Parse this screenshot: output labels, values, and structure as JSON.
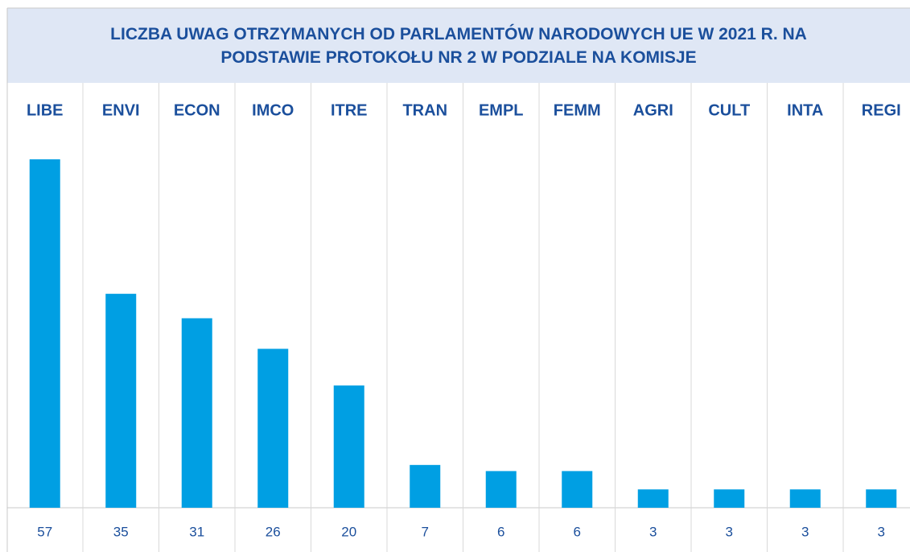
{
  "chart_data": {
    "type": "bar",
    "title": "LICZBA UWAG OTRZYMANYCH OD PARLAMENTÓW NARODOWYCH UE W 2021 R. NA PODSTAWIE PROTOKOŁU NR 2 W PODZIALE NA KOMISJE",
    "categories": [
      "LIBE",
      "ENVI",
      "ECON",
      "IMCO",
      "ITRE",
      "TRAN",
      "EMPL",
      "FEMM",
      "AGRI",
      "CULT",
      "INTA",
      "REGI"
    ],
    "values": [
      57,
      35,
      31,
      26,
      20,
      7,
      6,
      6,
      3,
      3,
      3,
      3
    ],
    "color": "#009fe3"
  }
}
